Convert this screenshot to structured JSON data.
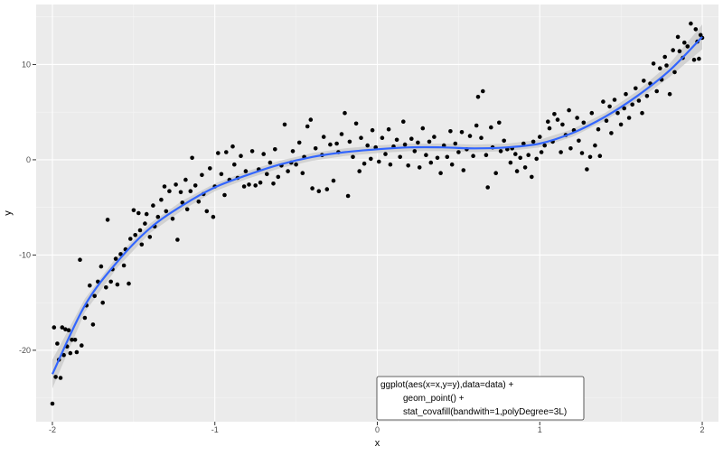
{
  "chart_data": {
    "type": "scatter",
    "title": "",
    "xlabel": "x",
    "ylabel": "y",
    "xlim": [
      -2.1,
      2.1
    ],
    "ylim": [
      -27.5,
      16.3
    ],
    "x_ticks": [
      -2,
      -1,
      0,
      1,
      2
    ],
    "x_tick_labels": [
      "-2",
      "-1",
      "0",
      "1",
      "2"
    ],
    "y_ticks": [
      -20,
      -10,
      0,
      10
    ],
    "y_tick_labels": [
      "-20",
      "-10",
      "0",
      "10"
    ],
    "grid": true,
    "legend": "none",
    "colors": {
      "panel_background": "#ebebeb",
      "grid_major": "#ffffff",
      "points": "#000000",
      "fit_line": "#3366ff",
      "confidence_band": "#c8c8c8"
    },
    "fit_curve": {
      "name": "",
      "x": [
        -2.0,
        -1.8,
        -1.6,
        -1.4,
        -1.2,
        -1.0,
        -0.8,
        -0.6,
        -0.4,
        -0.2,
        0.0,
        0.2,
        0.4,
        0.6,
        0.8,
        1.0,
        1.2,
        1.4,
        1.6,
        1.8,
        2.0
      ],
      "y": [
        -22.5,
        -15.3,
        -10.7,
        -7.2,
        -4.8,
        -2.9,
        -1.6,
        -0.5,
        0.3,
        0.8,
        1.1,
        1.3,
        1.3,
        1.2,
        1.3,
        1.7,
        2.8,
        4.5,
        6.7,
        9.4,
        12.9
      ],
      "band_upper": [
        -21.0,
        -14.6,
        -10.1,
        -6.7,
        -4.3,
        -2.5,
        -1.2,
        -0.1,
        0.7,
        1.2,
        1.5,
        1.7,
        1.7,
        1.6,
        1.7,
        2.1,
        3.2,
        4.9,
        7.2,
        10.1,
        14.2
      ],
      "band_lower": [
        -24.0,
        -16.0,
        -11.3,
        -7.7,
        -5.3,
        -3.3,
        -2.0,
        -0.9,
        -0.1,
        0.4,
        0.7,
        0.9,
        0.9,
        0.8,
        0.9,
        1.3,
        2.4,
        4.1,
        6.2,
        8.7,
        11.6
      ]
    },
    "points": [
      {
        "x": -2.0,
        "y": -25.6
      },
      {
        "x": -1.99,
        "y": -17.6
      },
      {
        "x": -1.98,
        "y": -22.8
      },
      {
        "x": -1.97,
        "y": -19.3
      },
      {
        "x": -1.96,
        "y": -21.0
      },
      {
        "x": -1.95,
        "y": -22.9
      },
      {
        "x": -1.94,
        "y": -17.6
      },
      {
        "x": -1.93,
        "y": -20.5
      },
      {
        "x": -1.92,
        "y": -17.8
      },
      {
        "x": -1.91,
        "y": -19.6
      },
      {
        "x": -1.9,
        "y": -17.9
      },
      {
        "x": -1.89,
        "y": -20.3
      },
      {
        "x": -1.88,
        "y": -18.9
      },
      {
        "x": -1.86,
        "y": -18.9
      },
      {
        "x": -1.85,
        "y": -20.2
      },
      {
        "x": -1.83,
        "y": -10.5
      },
      {
        "x": -1.82,
        "y": -19.5
      },
      {
        "x": -1.8,
        "y": -16.6
      },
      {
        "x": -1.79,
        "y": -15.3
      },
      {
        "x": -1.77,
        "y": -13.2
      },
      {
        "x": -1.75,
        "y": -17.3
      },
      {
        "x": -1.74,
        "y": -14.3
      },
      {
        "x": -1.72,
        "y": -12.8
      },
      {
        "x": -1.7,
        "y": -11.2
      },
      {
        "x": -1.69,
        "y": -15.0
      },
      {
        "x": -1.67,
        "y": -13.4
      },
      {
        "x": -1.66,
        "y": -6.3
      },
      {
        "x": -1.64,
        "y": -12.8
      },
      {
        "x": -1.63,
        "y": -11.5
      },
      {
        "x": -1.61,
        "y": -10.4
      },
      {
        "x": -1.6,
        "y": -13.1
      },
      {
        "x": -1.58,
        "y": -9.9
      },
      {
        "x": -1.56,
        "y": -11.1
      },
      {
        "x": -1.55,
        "y": -9.4
      },
      {
        "x": -1.53,
        "y": -13.0
      },
      {
        "x": -1.52,
        "y": -8.3
      },
      {
        "x": -1.5,
        "y": -5.3
      },
      {
        "x": -1.49,
        "y": -7.9
      },
      {
        "x": -1.47,
        "y": -5.6
      },
      {
        "x": -1.46,
        "y": -7.4
      },
      {
        "x": -1.45,
        "y": -8.9
      },
      {
        "x": -1.43,
        "y": -6.7
      },
      {
        "x": -1.42,
        "y": -5.7
      },
      {
        "x": -1.4,
        "y": -8.1
      },
      {
        "x": -1.38,
        "y": -4.8
      },
      {
        "x": -1.37,
        "y": -7.0
      },
      {
        "x": -1.35,
        "y": -6.0
      },
      {
        "x": -1.33,
        "y": -4.2
      },
      {
        "x": -1.31,
        "y": -2.8
      },
      {
        "x": -1.3,
        "y": -5.4
      },
      {
        "x": -1.28,
        "y": -3.3
      },
      {
        "x": -1.26,
        "y": -6.2
      },
      {
        "x": -1.24,
        "y": -2.6
      },
      {
        "x": -1.23,
        "y": -8.4
      },
      {
        "x": -1.21,
        "y": -3.4
      },
      {
        "x": -1.2,
        "y": -4.5
      },
      {
        "x": -1.18,
        "y": -2.1
      },
      {
        "x": -1.17,
        "y": -5.2
      },
      {
        "x": -1.15,
        "y": -3.3
      },
      {
        "x": -1.14,
        "y": 0.2
      },
      {
        "x": -1.12,
        "y": -2.7
      },
      {
        "x": -1.1,
        "y": -4.4
      },
      {
        "x": -1.08,
        "y": -1.6
      },
      {
        "x": -1.07,
        "y": -3.6
      },
      {
        "x": -1.05,
        "y": -5.4
      },
      {
        "x": -1.03,
        "y": -0.9
      },
      {
        "x": -1.01,
        "y": -6.0
      },
      {
        "x": -1.0,
        "y": -2.8
      },
      {
        "x": -0.98,
        "y": 0.7
      },
      {
        "x": -0.96,
        "y": -1.5
      },
      {
        "x": -0.94,
        "y": -3.7
      },
      {
        "x": -0.93,
        "y": 0.8
      },
      {
        "x": -0.91,
        "y": -2.1
      },
      {
        "x": -0.89,
        "y": 1.4
      },
      {
        "x": -0.88,
        "y": -0.5
      },
      {
        "x": -0.86,
        "y": -1.9
      },
      {
        "x": -0.84,
        "y": 0.4
      },
      {
        "x": -0.82,
        "y": -2.8
      },
      {
        "x": -0.81,
        "y": -1.2
      },
      {
        "x": -0.79,
        "y": -2.6
      },
      {
        "x": -0.77,
        "y": 0.9
      },
      {
        "x": -0.75,
        "y": -2.7
      },
      {
        "x": -0.73,
        "y": -1.0
      },
      {
        "x": -0.72,
        "y": -2.4
      },
      {
        "x": -0.7,
        "y": 0.6
      },
      {
        "x": -0.68,
        "y": -1.5
      },
      {
        "x": -0.66,
        "y": -0.3
      },
      {
        "x": -0.64,
        "y": -2.5
      },
      {
        "x": -0.63,
        "y": 1.1
      },
      {
        "x": -0.61,
        "y": -1.8
      },
      {
        "x": -0.59,
        "y": -0.6
      },
      {
        "x": -0.57,
        "y": 3.7
      },
      {
        "x": -0.55,
        "y": -1.2
      },
      {
        "x": -0.53,
        "y": -0.3
      },
      {
        "x": -0.52,
        "y": 0.9
      },
      {
        "x": -0.5,
        "y": -0.5
      },
      {
        "x": -0.48,
        "y": 1.8
      },
      {
        "x": -0.46,
        "y": -1.4
      },
      {
        "x": -0.45,
        "y": 0.3
      },
      {
        "x": -0.43,
        "y": 3.5
      },
      {
        "x": -0.41,
        "y": 4.2
      },
      {
        "x": -0.4,
        "y": -3.0
      },
      {
        "x": -0.38,
        "y": 1.2
      },
      {
        "x": -0.36,
        "y": -3.3
      },
      {
        "x": -0.34,
        "y": 0.5
      },
      {
        "x": -0.33,
        "y": 2.4
      },
      {
        "x": -0.31,
        "y": -3.1
      },
      {
        "x": -0.29,
        "y": 1.6
      },
      {
        "x": -0.27,
        "y": -2.2
      },
      {
        "x": -0.25,
        "y": 1.7
      },
      {
        "x": -0.24,
        "y": 0.8
      },
      {
        "x": -0.22,
        "y": 2.7
      },
      {
        "x": -0.2,
        "y": 4.9
      },
      {
        "x": -0.18,
        "y": -3.8
      },
      {
        "x": -0.17,
        "y": 1.9
      },
      {
        "x": -0.15,
        "y": 0.3
      },
      {
        "x": -0.13,
        "y": 3.8
      },
      {
        "x": -0.11,
        "y": -1.2
      },
      {
        "x": -0.1,
        "y": 2.3
      },
      {
        "x": -0.08,
        "y": -0.4
      },
      {
        "x": -0.06,
        "y": 1.5
      },
      {
        "x": -0.04,
        "y": 0.1
      },
      {
        "x": -0.03,
        "y": 3.1
      },
      {
        "x": -0.01,
        "y": 1.3
      },
      {
        "x": 0.01,
        "y": -0.2
      },
      {
        "x": 0.03,
        "y": 2.3
      },
      {
        "x": 0.05,
        "y": 0.6
      },
      {
        "x": 0.07,
        "y": 3.2
      },
      {
        "x": 0.08,
        "y": -0.5
      },
      {
        "x": 0.1,
        "y": 1.4
      },
      {
        "x": 0.12,
        "y": 2.1
      },
      {
        "x": 0.14,
        "y": 0.3
      },
      {
        "x": 0.16,
        "y": 4.0
      },
      {
        "x": 0.17,
        "y": 1.6
      },
      {
        "x": 0.19,
        "y": -0.6
      },
      {
        "x": 0.21,
        "y": 2.2
      },
      {
        "x": 0.23,
        "y": 0.9
      },
      {
        "x": 0.25,
        "y": 1.8
      },
      {
        "x": 0.26,
        "y": -0.8
      },
      {
        "x": 0.28,
        "y": 3.3
      },
      {
        "x": 0.3,
        "y": 0.5
      },
      {
        "x": 0.32,
        "y": 1.9
      },
      {
        "x": 0.33,
        "y": -0.3
      },
      {
        "x": 0.35,
        "y": 2.4
      },
      {
        "x": 0.37,
        "y": 0.2
      },
      {
        "x": 0.39,
        "y": -1.4
      },
      {
        "x": 0.41,
        "y": 1.5
      },
      {
        "x": 0.43,
        "y": 0.3
      },
      {
        "x": 0.45,
        "y": 3.0
      },
      {
        "x": 0.46,
        "y": -0.5
      },
      {
        "x": 0.48,
        "y": 1.7
      },
      {
        "x": 0.5,
        "y": 0.8
      },
      {
        "x": 0.52,
        "y": 2.9
      },
      {
        "x": 0.53,
        "y": -1.1
      },
      {
        "x": 0.55,
        "y": 1.1
      },
      {
        "x": 0.57,
        "y": 2.5
      },
      {
        "x": 0.59,
        "y": 0.4
      },
      {
        "x": 0.61,
        "y": 3.6
      },
      {
        "x": 0.62,
        "y": 6.6
      },
      {
        "x": 0.64,
        "y": 2.3
      },
      {
        "x": 0.65,
        "y": 7.2
      },
      {
        "x": 0.67,
        "y": 0.5
      },
      {
        "x": 0.68,
        "y": -2.9
      },
      {
        "x": 0.7,
        "y": 3.4
      },
      {
        "x": 0.71,
        "y": 1.3
      },
      {
        "x": 0.73,
        "y": -1.4
      },
      {
        "x": 0.75,
        "y": 3.9
      },
      {
        "x": 0.76,
        "y": 0.9
      },
      {
        "x": 0.78,
        "y": 2.0
      },
      {
        "x": 0.8,
        "y": 1.1
      },
      {
        "x": 0.82,
        "y": -0.3
      },
      {
        "x": 0.83,
        "y": 1.2
      },
      {
        "x": 0.85,
        "y": 0.6
      },
      {
        "x": 0.86,
        "y": -1.2
      },
      {
        "x": 0.88,
        "y": 0.2
      },
      {
        "x": 0.9,
        "y": 1.7
      },
      {
        "x": 0.91,
        "y": -0.8
      },
      {
        "x": 0.93,
        "y": 0.5
      },
      {
        "x": 0.95,
        "y": -1.8
      },
      {
        "x": 0.96,
        "y": 1.9
      },
      {
        "x": 0.98,
        "y": 0.1
      },
      {
        "x": 1.0,
        "y": 2.4
      },
      {
        "x": 1.01,
        "y": 0.8
      },
      {
        "x": 1.03,
        "y": 1.5
      },
      {
        "x": 1.05,
        "y": 4.0
      },
      {
        "x": 1.06,
        "y": 3.3
      },
      {
        "x": 1.08,
        "y": 1.9
      },
      {
        "x": 1.09,
        "y": 4.8
      },
      {
        "x": 1.11,
        "y": 4.2
      },
      {
        "x": 1.13,
        "y": 0.8
      },
      {
        "x": 1.14,
        "y": 3.7
      },
      {
        "x": 1.16,
        "y": 2.6
      },
      {
        "x": 1.18,
        "y": 5.2
      },
      {
        "x": 1.19,
        "y": 1.2
      },
      {
        "x": 1.21,
        "y": 3.1
      },
      {
        "x": 1.23,
        "y": 4.4
      },
      {
        "x": 1.24,
        "y": 2.0
      },
      {
        "x": 1.26,
        "y": 0.7
      },
      {
        "x": 1.27,
        "y": 3.9
      },
      {
        "x": 1.29,
        "y": -1.0
      },
      {
        "x": 1.31,
        "y": 0.3
      },
      {
        "x": 1.32,
        "y": 4.9
      },
      {
        "x": 1.34,
        "y": 1.5
      },
      {
        "x": 1.36,
        "y": 3.2
      },
      {
        "x": 1.37,
        "y": 0.4
      },
      {
        "x": 1.39,
        "y": 6.1
      },
      {
        "x": 1.41,
        "y": 4.1
      },
      {
        "x": 1.43,
        "y": 5.6
      },
      {
        "x": 1.44,
        "y": 2.8
      },
      {
        "x": 1.46,
        "y": 6.3
      },
      {
        "x": 1.48,
        "y": 4.9
      },
      {
        "x": 1.5,
        "y": 3.7
      },
      {
        "x": 1.52,
        "y": 5.4
      },
      {
        "x": 1.53,
        "y": 6.9
      },
      {
        "x": 1.55,
        "y": 4.4
      },
      {
        "x": 1.57,
        "y": 5.8
      },
      {
        "x": 1.59,
        "y": 7.5
      },
      {
        "x": 1.61,
        "y": 6.2
      },
      {
        "x": 1.63,
        "y": 4.9
      },
      {
        "x": 1.64,
        "y": 8.3
      },
      {
        "x": 1.66,
        "y": 6.7
      },
      {
        "x": 1.68,
        "y": 8.0
      },
      {
        "x": 1.7,
        "y": 10.1
      },
      {
        "x": 1.72,
        "y": 7.2
      },
      {
        "x": 1.74,
        "y": 9.6
      },
      {
        "x": 1.75,
        "y": 8.4
      },
      {
        "x": 1.77,
        "y": 10.8
      },
      {
        "x": 1.78,
        "y": 9.9
      },
      {
        "x": 1.8,
        "y": 6.9
      },
      {
        "x": 1.82,
        "y": 11.5
      },
      {
        "x": 1.83,
        "y": 9.2
      },
      {
        "x": 1.85,
        "y": 12.9
      },
      {
        "x": 1.86,
        "y": 11.4
      },
      {
        "x": 1.88,
        "y": 10.7
      },
      {
        "x": 1.89,
        "y": 12.3
      },
      {
        "x": 1.91,
        "y": 11.9
      },
      {
        "x": 1.93,
        "y": 14.3
      },
      {
        "x": 1.95,
        "y": 10.5
      },
      {
        "x": 1.96,
        "y": 13.7
      },
      {
        "x": 1.97,
        "y": 12.4
      },
      {
        "x": 1.98,
        "y": 10.6
      },
      {
        "x": 1.99,
        "y": 13.1
      },
      {
        "x": 2.0,
        "y": 12.8
      }
    ],
    "annotations": [
      "ggplot(aes(x=x,y=y),data=data) +",
      "geom_point() +",
      "stat_covafill(bandwith=1,polyDegree=3L)"
    ]
  }
}
